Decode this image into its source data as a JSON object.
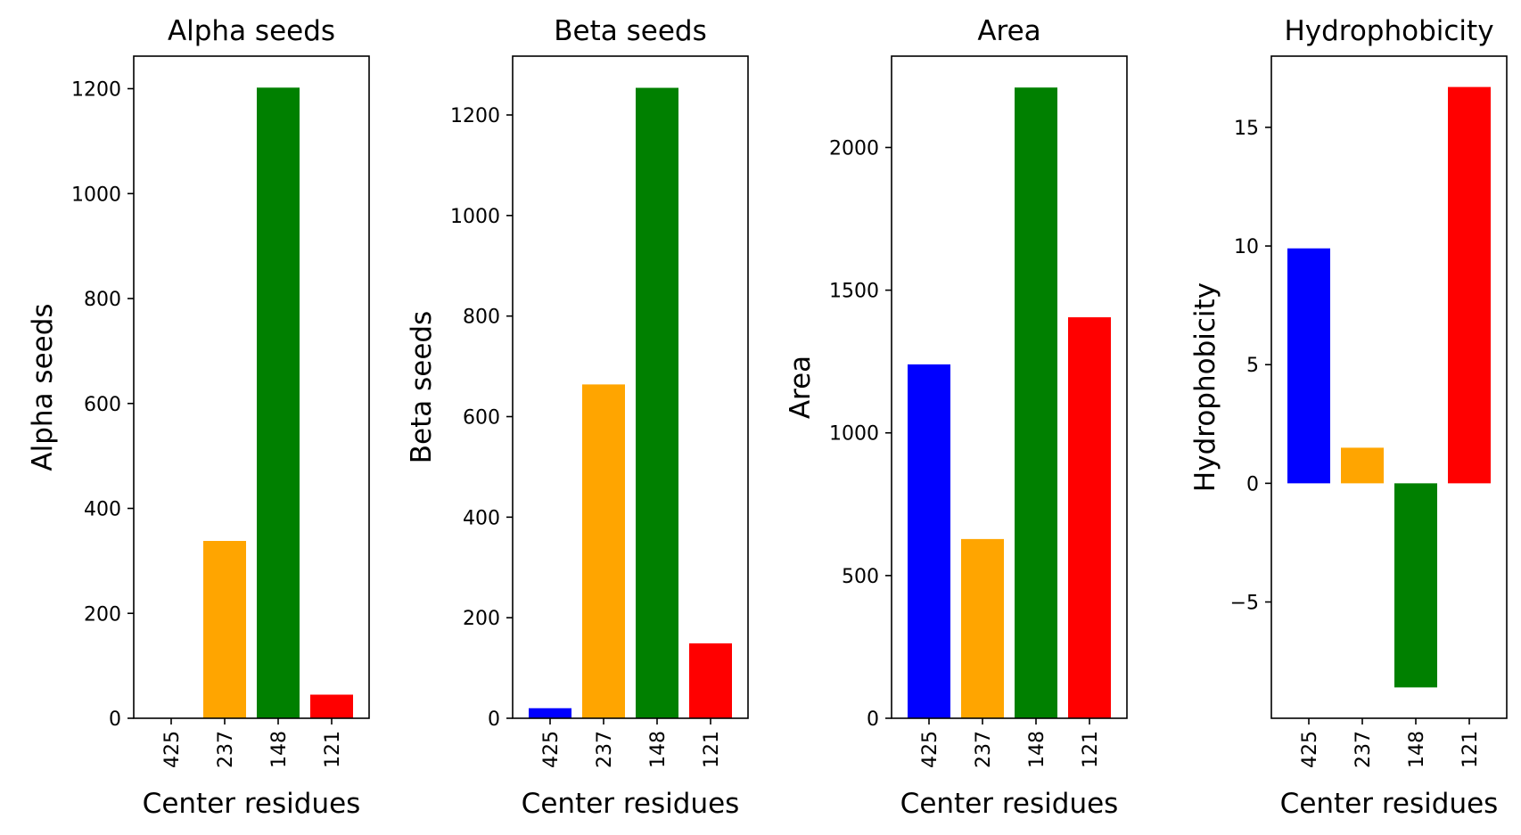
{
  "chart_data": [
    {
      "type": "bar",
      "title": "Alpha seeds",
      "xlabel": "Center residues",
      "ylabel": "Alpha seeds",
      "categories": [
        "425",
        "237",
        "148",
        "121"
      ],
      "values": [
        0,
        338,
        1202,
        45
      ],
      "colors": [
        "#0000ff",
        "#ffa500",
        "#008000",
        "#ff0000"
      ],
      "ylim": [
        0,
        1262
      ],
      "yticks": [
        0,
        200,
        400,
        600,
        800,
        1000,
        1200
      ]
    },
    {
      "type": "bar",
      "title": "Beta seeds",
      "xlabel": "Center residues",
      "ylabel": "Beta seeds",
      "categories": [
        "425",
        "237",
        "148",
        "121"
      ],
      "values": [
        20,
        664,
        1254,
        149
      ],
      "colors": [
        "#0000ff",
        "#ffa500",
        "#008000",
        "#ff0000"
      ],
      "ylim": [
        0,
        1317
      ],
      "yticks": [
        0,
        200,
        400,
        600,
        800,
        1000,
        1200
      ]
    },
    {
      "type": "bar",
      "title": "Area",
      "xlabel": "Center residues",
      "ylabel": "Area",
      "categories": [
        "425",
        "237",
        "148",
        "121"
      ],
      "values": [
        1240,
        628,
        2210,
        1405
      ],
      "colors": [
        "#0000ff",
        "#ffa500",
        "#008000",
        "#ff0000"
      ],
      "ylim": [
        0,
        2320
      ],
      "yticks": [
        0,
        500,
        1000,
        1500,
        2000
      ]
    },
    {
      "type": "bar",
      "title": "Hydrophobicity",
      "xlabel": "Center residues",
      "ylabel": "Hydrophobicity",
      "categories": [
        "425",
        "237",
        "148",
        "121"
      ],
      "values": [
        9.9,
        1.5,
        -8.6,
        16.7
      ],
      "colors": [
        "#0000ff",
        "#ffa500",
        "#008000",
        "#ff0000"
      ],
      "ylim": [
        -9.9,
        18.0
      ],
      "yticks": [
        -5,
        0,
        5,
        10,
        15
      ],
      "ytick_labels": [
        "−5",
        "0",
        "5",
        "10",
        "15"
      ]
    }
  ]
}
